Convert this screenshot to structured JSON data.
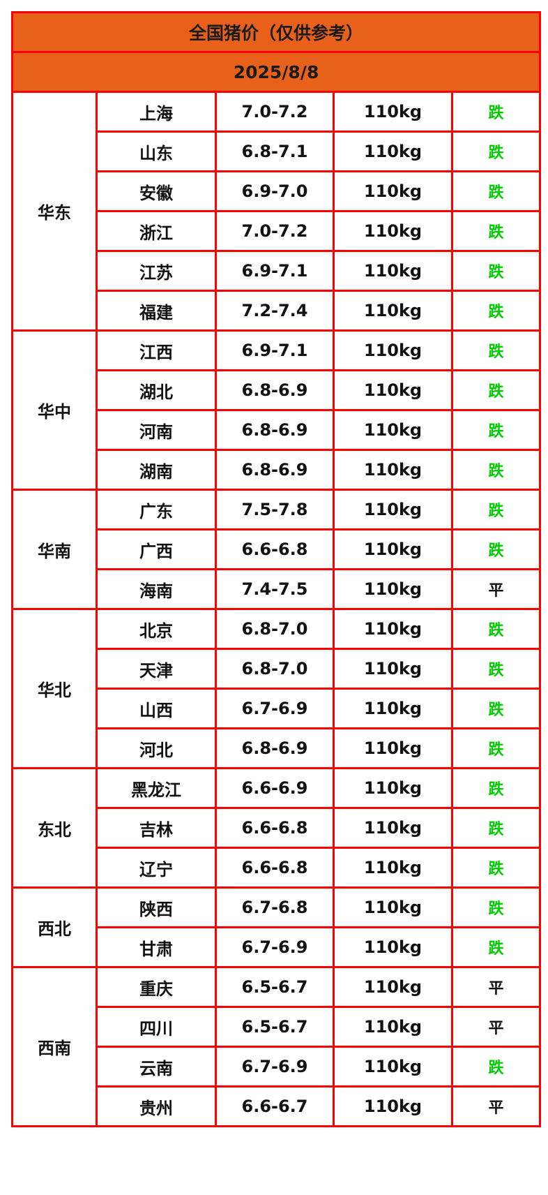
{
  "title": "全国猪价（仅供参考）",
  "date": "2025/8/8",
  "colors": {
    "header_bg": "#e8611a",
    "border": "#ff0000",
    "down": "#00cc00",
    "flat": "#111111"
  },
  "regions": [
    {
      "name": "华东",
      "rows": [
        {
          "province": "上海",
          "price": "7.0-7.2",
          "weight": "110kg",
          "trend": "跌"
        },
        {
          "province": "山东",
          "price": "6.8-7.1",
          "weight": "110kg",
          "trend": "跌"
        },
        {
          "province": "安徽",
          "price": "6.9-7.0",
          "weight": "110kg",
          "trend": "跌"
        },
        {
          "province": "浙江",
          "price": "7.0-7.2",
          "weight": "110kg",
          "trend": "跌"
        },
        {
          "province": "江苏",
          "price": "6.9-7.1",
          "weight": "110kg",
          "trend": "跌"
        },
        {
          "province": "福建",
          "price": "7.2-7.4",
          "weight": "110kg",
          "trend": "跌"
        }
      ]
    },
    {
      "name": "华中",
      "rows": [
        {
          "province": "江西",
          "price": "6.9-7.1",
          "weight": "110kg",
          "trend": "跌"
        },
        {
          "province": "湖北",
          "price": "6.8-6.9",
          "weight": "110kg",
          "trend": "跌"
        },
        {
          "province": "河南",
          "price": "6.8-6.9",
          "weight": "110kg",
          "trend": "跌"
        },
        {
          "province": "湖南",
          "price": "6.8-6.9",
          "weight": "110kg",
          "trend": "跌"
        }
      ]
    },
    {
      "name": "华南",
      "rows": [
        {
          "province": "广东",
          "price": "7.5-7.8",
          "weight": "110kg",
          "trend": "跌"
        },
        {
          "province": "广西",
          "price": "6.6-6.8",
          "weight": "110kg",
          "trend": "跌"
        },
        {
          "province": "海南",
          "price": "7.4-7.5",
          "weight": "110kg",
          "trend": "平"
        }
      ]
    },
    {
      "name": "华北",
      "rows": [
        {
          "province": "北京",
          "price": "6.8-7.0",
          "weight": "110kg",
          "trend": "跌"
        },
        {
          "province": "天津",
          "price": "6.8-7.0",
          "weight": "110kg",
          "trend": "跌"
        },
        {
          "province": "山西",
          "price": "6.7-6.9",
          "weight": "110kg",
          "trend": "跌"
        },
        {
          "province": "河北",
          "price": "6.8-6.9",
          "weight": "110kg",
          "trend": "跌"
        }
      ]
    },
    {
      "name": "东北",
      "rows": [
        {
          "province": "黑龙江",
          "price": "6.6-6.9",
          "weight": "110kg",
          "trend": "跌"
        },
        {
          "province": "吉林",
          "price": "6.6-6.8",
          "weight": "110kg",
          "trend": "跌"
        },
        {
          "province": "辽宁",
          "price": "6.6-6.8",
          "weight": "110kg",
          "trend": "跌"
        }
      ]
    },
    {
      "name": "西北",
      "rows": [
        {
          "province": "陕西",
          "price": "6.7-6.8",
          "weight": "110kg",
          "trend": "跌"
        },
        {
          "province": "甘肃",
          "price": "6.7-6.9",
          "weight": "110kg",
          "trend": "跌"
        }
      ]
    },
    {
      "name": "西南",
      "rows": [
        {
          "province": "重庆",
          "price": "6.5-6.7",
          "weight": "110kg",
          "trend": "平"
        },
        {
          "province": "四川",
          "price": "6.5-6.7",
          "weight": "110kg",
          "trend": "平"
        },
        {
          "province": "云南",
          "price": "6.7-6.9",
          "weight": "110kg",
          "trend": "跌"
        },
        {
          "province": "贵州",
          "price": "6.6-6.7",
          "weight": "110kg",
          "trend": "平"
        }
      ]
    }
  ]
}
